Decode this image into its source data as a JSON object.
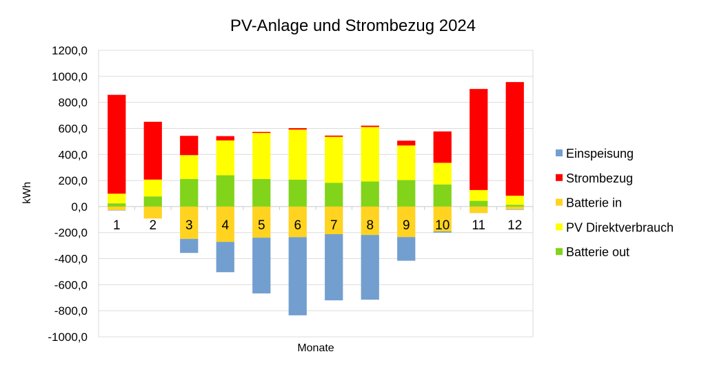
{
  "chart_data": {
    "type": "bar",
    "stacked": true,
    "title": "PV-Anlage und Strombezug 2024",
    "xlabel": "Monate",
    "ylabel": "kWh",
    "ylim": [
      -1000,
      1200
    ],
    "yticks": [
      -1000,
      -800,
      -600,
      -400,
      -200,
      0,
      200,
      400,
      600,
      800,
      1000,
      1200
    ],
    "ytick_labels": [
      "-1000,0",
      "-800,0",
      "-600,0",
      "-400,0",
      "-200,0",
      "0,0",
      "200,0",
      "400,0",
      "600,0",
      "800,0",
      "1000,0",
      "1200,0"
    ],
    "grid": true,
    "legend_position": "right",
    "categories": [
      "1",
      "2",
      "3",
      "4",
      "5",
      "6",
      "7",
      "8",
      "9",
      "10",
      "11",
      "12"
    ],
    "series": [
      {
        "name": "Einspeisung",
        "color": "#729fcf",
        "values": [
          -3,
          0,
          -108,
          -233,
          -428,
          -600,
          -508,
          -497,
          -182,
          -9,
          0,
          -4
        ]
      },
      {
        "name": "Strombezug",
        "color": "#ff0000",
        "values": [
          759,
          444,
          148,
          33,
          8,
          11,
          9,
          10,
          37,
          241,
          776,
          873
        ]
      },
      {
        "name": "Batterie in",
        "color": "#ffd320",
        "values": [
          -27,
          -92,
          -248,
          -271,
          -239,
          -235,
          -212,
          -218,
          -234,
          -191,
          -50,
          -21
        ]
      },
      {
        "name": "PV Direktverbrauch",
        "color": "#ffff00",
        "values": [
          74,
          129,
          183,
          267,
          353,
          384,
          354,
          418,
          265,
          166,
          83,
          69
        ]
      },
      {
        "name": "Batterie out",
        "color": "#81d41a",
        "values": [
          25,
          78,
          212,
          241,
          212,
          207,
          182,
          193,
          204,
          170,
          44,
          14
        ]
      }
    ]
  }
}
